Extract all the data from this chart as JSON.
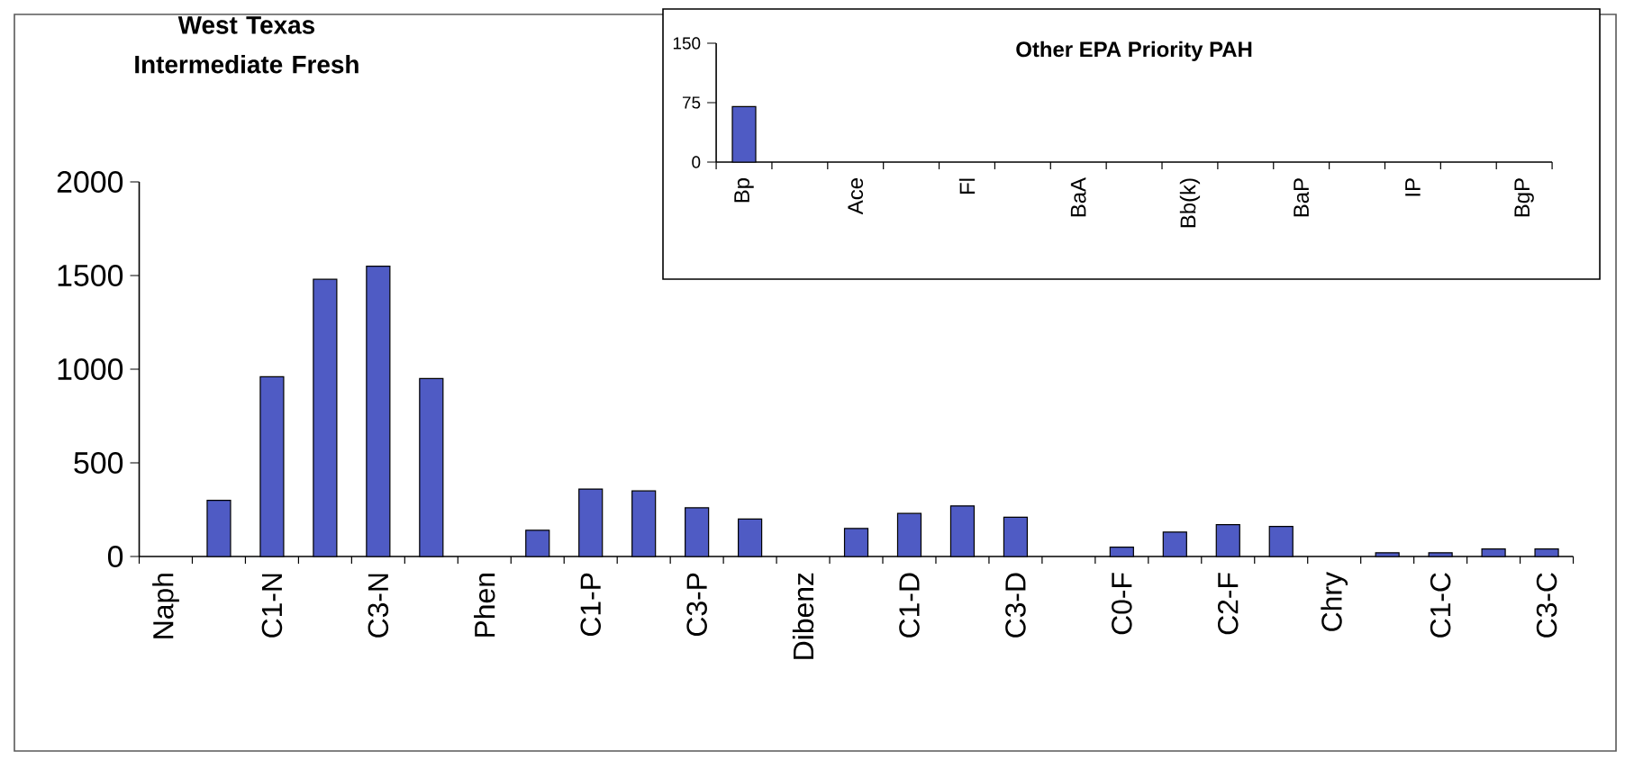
{
  "chart_data": [
    {
      "type": "bar",
      "title": "West Texas Intermediate Fresh",
      "color": "#4f5bc4",
      "ylim": [
        0,
        2000
      ],
      "yticks": [
        0,
        500,
        1000,
        1500,
        2000
      ],
      "categories": [
        "Naph",
        null,
        "C1-N",
        null,
        "C3-N",
        null,
        "Phen",
        null,
        "C1-P",
        null,
        "C3-P",
        null,
        "Dibenz",
        null,
        "C1-D",
        null,
        "C3-D",
        null,
        "C0-F",
        null,
        "C2-F",
        null,
        "Chry",
        null,
        "C1-C",
        null,
        "C3-C"
      ],
      "values": [
        null,
        300,
        960,
        1480,
        1550,
        950,
        null,
        140,
        360,
        350,
        260,
        200,
        null,
        150,
        230,
        270,
        210,
        null,
        50,
        130,
        170,
        160,
        null,
        20,
        20,
        40,
        40
      ]
    },
    {
      "type": "bar",
      "title": "Other EPA Priority PAH",
      "color": "#4f5bc4",
      "ylim": [
        0,
        150
      ],
      "yticks": [
        0,
        75,
        150
      ],
      "categories": [
        "Bp",
        null,
        "Ace",
        null,
        "Fl",
        null,
        "BaA",
        null,
        "Bb(k)",
        null,
        "BaP",
        null,
        "IP",
        null,
        "BgP"
      ],
      "values": [
        70,
        null,
        null,
        null,
        null,
        null,
        null,
        null,
        null,
        null,
        null,
        null,
        null,
        null,
        null
      ]
    }
  ]
}
